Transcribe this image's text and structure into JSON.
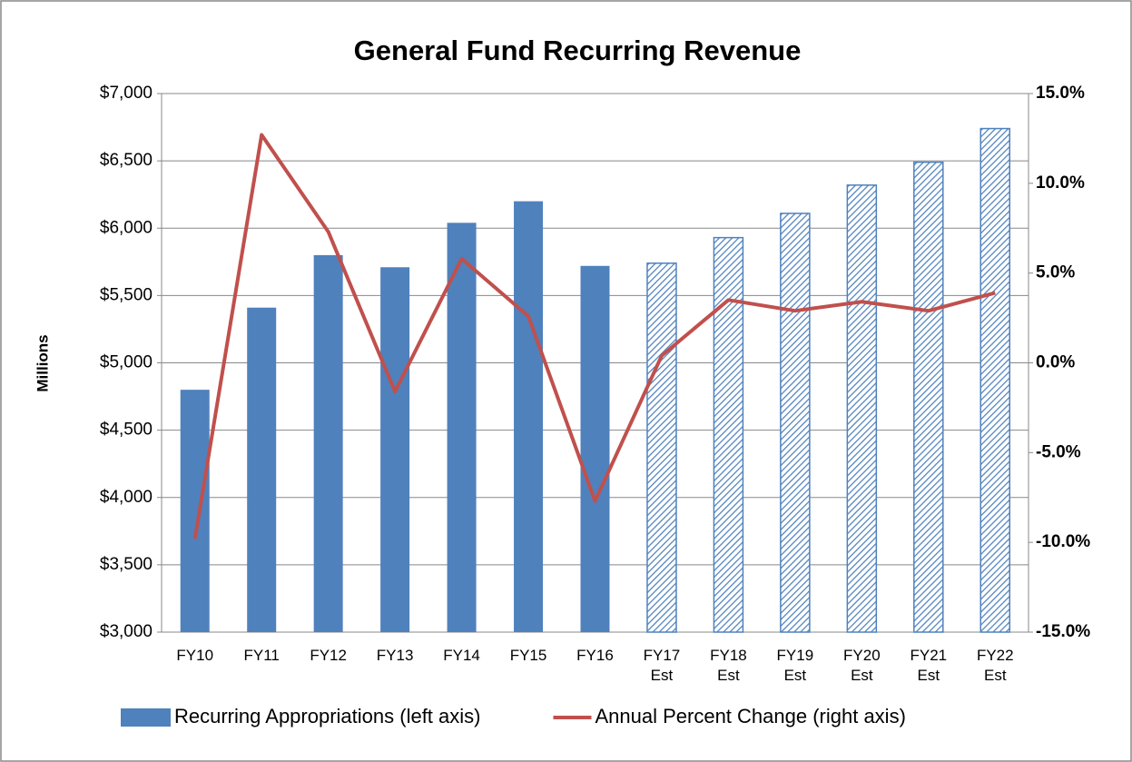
{
  "chart_data": {
    "type": "bar-line",
    "title": "General Fund Recurring Revenue",
    "y_label": "Millions",
    "categories": [
      "FY10",
      "FY11",
      "FY12",
      "FY13",
      "FY14",
      "FY15",
      "FY16",
      "FY17 Est",
      "FY18 Est",
      "FY19 Est",
      "FY20 Est",
      "FY21 Est",
      "FY22 Est"
    ],
    "series": [
      {
        "name": "Recurring Appropriations (left axis)",
        "type": "bar",
        "axis": "y",
        "color": "#4f81bd",
        "fill_styles": [
          "solid",
          "solid",
          "solid",
          "solid",
          "solid",
          "solid",
          "solid",
          "hatched",
          "hatched",
          "hatched",
          "hatched",
          "hatched",
          "hatched"
        ],
        "values": [
          4800,
          5410,
          5800,
          5710,
          6040,
          6200,
          5720,
          5740,
          5930,
          6110,
          6320,
          6490,
          6740
        ]
      },
      {
        "name": "Annual Percent Change (right axis)",
        "type": "line",
        "axis": "y2",
        "color": "#c0504d",
        "values": [
          -9.8,
          12.7,
          7.3,
          -1.6,
          5.8,
          2.6,
          -7.7,
          0.4,
          3.5,
          2.9,
          3.4,
          2.9,
          3.9
        ]
      }
    ],
    "ylim": [
      3000,
      7000
    ],
    "yticks": [
      {
        "value": 3000,
        "label": "$3,000"
      },
      {
        "value": 3500,
        "label": "$3,500"
      },
      {
        "value": 4000,
        "label": "$4,000"
      },
      {
        "value": 4500,
        "label": "$4,500"
      },
      {
        "value": 5000,
        "label": "$5,000"
      },
      {
        "value": 5500,
        "label": "$5,500"
      },
      {
        "value": 6000,
        "label": "$6,000"
      },
      {
        "value": 6500,
        "label": "$6,500"
      },
      {
        "value": 7000,
        "label": "$7,000"
      }
    ],
    "y2lim": [
      -15,
      15
    ],
    "y2ticks": [
      {
        "value": -15,
        "label": "-15.0%"
      },
      {
        "value": -10,
        "label": "-10.0%"
      },
      {
        "value": -5,
        "label": "-5.0%"
      },
      {
        "value": 0,
        "label": "0.0%"
      },
      {
        "value": 5,
        "label": "5.0%"
      },
      {
        "value": 10,
        "label": "10.0%"
      },
      {
        "value": 15,
        "label": "15.0%"
      }
    ],
    "grid": true,
    "legend": "bottom"
  }
}
